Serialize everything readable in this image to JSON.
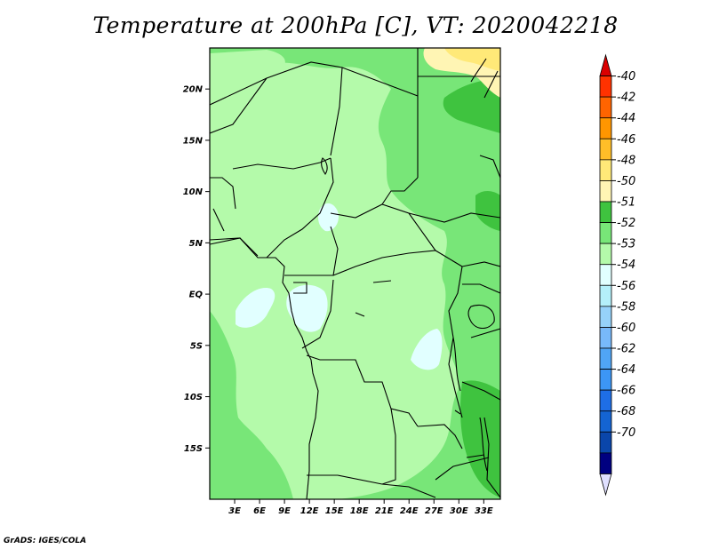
{
  "title": "Temperature at 200hPa [C], VT: 2020042218",
  "credit": "GrADS: IGES/COLA",
  "map": {
    "lon_range": [
      0,
      35
    ],
    "lat_range": [
      -20,
      24
    ],
    "lon_ticks": [
      {
        "value": 3,
        "label": "3E"
      },
      {
        "value": 6,
        "label": "6E"
      },
      {
        "value": 9,
        "label": "9E"
      },
      {
        "value": 12,
        "label": "12E"
      },
      {
        "value": 15,
        "label": "15E"
      },
      {
        "value": 18,
        "label": "18E"
      },
      {
        "value": 21,
        "label": "21E"
      },
      {
        "value": 24,
        "label": "24E"
      },
      {
        "value": 27,
        "label": "27E"
      },
      {
        "value": 30,
        "label": "30E"
      },
      {
        "value": 33,
        "label": "33E"
      }
    ],
    "lat_ticks": [
      {
        "value": 20,
        "label": "20N"
      },
      {
        "value": 15,
        "label": "15N"
      },
      {
        "value": 10,
        "label": "10N"
      },
      {
        "value": 5,
        "label": "5N"
      },
      {
        "value": 0,
        "label": "EQ"
      },
      {
        "value": -5,
        "label": "5S"
      },
      {
        "value": -10,
        "label": "10S"
      },
      {
        "value": -15,
        "label": "15S"
      }
    ]
  },
  "colorbar": {
    "colors": [
      "#da0000",
      "#ff3200",
      "#ff6400",
      "#ff9600",
      "#ffbe28",
      "#ffe978",
      "#fff5b4",
      "#3fc33f",
      "#78e678",
      "#b4faaa",
      "#e1ffff",
      "#b4f0fa",
      "#96d2fa",
      "#78b9fa",
      "#50a5f5",
      "#3c96f5",
      "#1e6ee6",
      "#1464d2",
      "#0a46aa",
      "#000080",
      "#e0e0ff"
    ],
    "labels": [
      "-40",
      "-42",
      "-44",
      "-46",
      "-48",
      "-50",
      "-51",
      "-52",
      "-53",
      "-54",
      "-56",
      "-58",
      "-60",
      "-62",
      "-64",
      "-66",
      "-68",
      "-70"
    ]
  }
}
